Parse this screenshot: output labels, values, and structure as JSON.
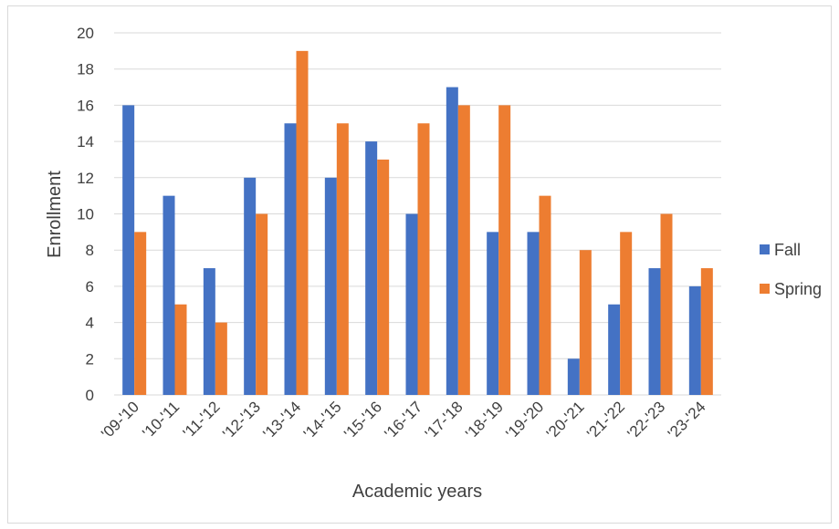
{
  "chart_data": {
    "type": "bar",
    "title": "",
    "xlabel": "Academic years",
    "ylabel": "Enrollment",
    "ylim": [
      0,
      20
    ],
    "yticks": [
      0,
      2,
      4,
      6,
      8,
      10,
      12,
      14,
      16,
      18,
      20
    ],
    "grid": true,
    "legend_position": "right",
    "categories": [
      "'09-'10",
      "'10-'11",
      "'11-'12",
      "'12-'13",
      "'13-'14",
      "'14-'15",
      "'15-'16",
      "'16-'17",
      "'17-'18",
      "'18-'19",
      "'19-'20",
      "'20-'21",
      "'21-'22",
      "'22-'23",
      "'23-'24"
    ],
    "series": [
      {
        "name": "Fall",
        "color": "#4472C4",
        "values": [
          16,
          11,
          7,
          12,
          15,
          12,
          14,
          10,
          17,
          9,
          9,
          2,
          5,
          7,
          6
        ]
      },
      {
        "name": "Spring",
        "color": "#ED7D31",
        "values": [
          9,
          5,
          4,
          10,
          19,
          15,
          13,
          15,
          16,
          16,
          11,
          8,
          9,
          10,
          7
        ]
      }
    ]
  }
}
